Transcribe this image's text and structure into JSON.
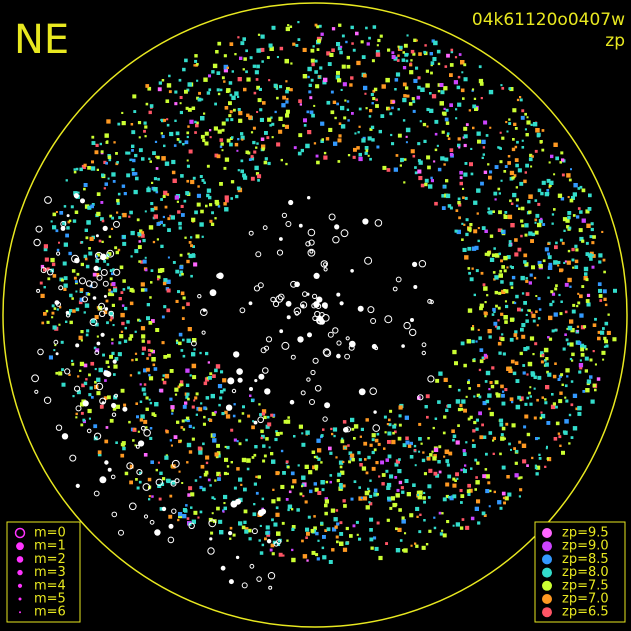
{
  "chart_data": {
    "type": "scatter",
    "corner_label": "NE",
    "image_id": "04k61120o0407w",
    "subtitle": "zp",
    "magnitude_legend": [
      "m=0",
      "m=1",
      "m=2",
      "m=3",
      "m=4",
      "m=5",
      "m=6"
    ],
    "zp_legend": [
      {
        "label": "zp=9.5",
        "color": "#ff66ff"
      },
      {
        "label": "zp=9.0",
        "color": "#cc44ff"
      },
      {
        "label": "zp=8.5",
        "color": "#3399ff"
      },
      {
        "label": "zp=8.0",
        "color": "#33ddcc"
      },
      {
        "label": "zp=7.5",
        "color": "#ccff33"
      },
      {
        "label": "zp=7.0",
        "color": "#ff9922"
      },
      {
        "label": "zp=6.5",
        "color": "#ff5566"
      }
    ]
  }
}
